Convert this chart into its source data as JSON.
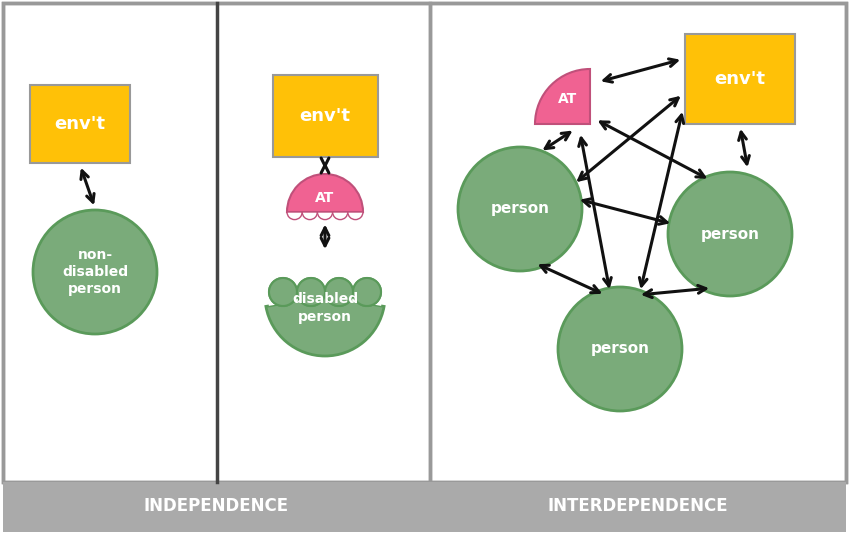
{
  "colors": {
    "orange": "#FFC107",
    "green": "#7aab7a",
    "green_edge": "#5a9a5a",
    "pink": "#F06292",
    "pink_edge": "#c0507a",
    "white": "#FFFFFF",
    "black": "#111111",
    "border": "#999999",
    "background": "#FFFFFF",
    "footer_bg": "#AAAAAA",
    "divider": "#444444"
  },
  "independence_title": "INDEPENDENCE",
  "interdependence_title": "INTERDEPENDENCE",
  "label_env": "env't",
  "label_non_disabled": "non-\ndisabled\nperson",
  "label_disabled": "disabled\nperson",
  "label_at": "AT",
  "label_person": "person",
  "fig_w": 8.49,
  "fig_h": 5.34,
  "dpi": 100
}
